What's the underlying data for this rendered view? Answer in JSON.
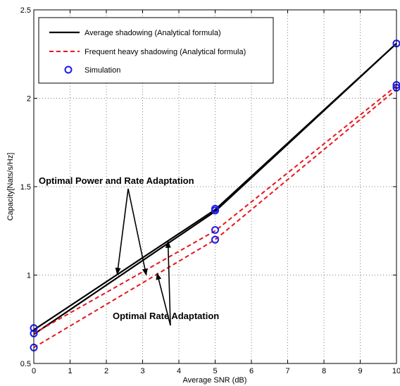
{
  "chart_data": {
    "type": "line",
    "xlabel": "Average SNR (dB)",
    "ylabel": "Capacity[Nats/s/Hz]",
    "xlim": [
      0,
      10
    ],
    "ylim": [
      0.5,
      2.5
    ],
    "xticks": [
      0,
      1,
      2,
      3,
      4,
      5,
      6,
      7,
      8,
      9,
      10
    ],
    "yticks": [
      0.5,
      1,
      1.5,
      2,
      2.5
    ],
    "xtick_labels": [
      "0",
      "1",
      "2",
      "3",
      "4",
      "5",
      "6",
      "7",
      "8",
      "9",
      "10"
    ],
    "ytick_labels": [
      "0.5",
      "1",
      "1.5",
      "2",
      "2.5"
    ],
    "grid": true,
    "legend_position": "top-left",
    "legend": [
      {
        "label": "Average shadowing (Analytical formula)",
        "style": "solid",
        "color": "#000000"
      },
      {
        "label": "Frequent heavy shadowing (Analytical formula)",
        "style": "dashed",
        "color": "#e8161b"
      },
      {
        "label": "Simulation",
        "style": "marker",
        "color": "#1a1aee"
      }
    ],
    "series": [
      {
        "group": "average",
        "style": "solid",
        "color": "#000000",
        "x": [
          0,
          5,
          10
        ],
        "y": [
          0.69,
          1.37,
          2.31
        ]
      },
      {
        "group": "average",
        "style": "solid",
        "color": "#000000",
        "x": [
          0,
          5,
          10
        ],
        "y": [
          0.665,
          1.36,
          2.31
        ]
      },
      {
        "group": "heavy",
        "style": "dashed",
        "color": "#e8161b",
        "x": [
          0,
          5,
          10
        ],
        "y": [
          0.67,
          1.25,
          2.07
        ]
      },
      {
        "group": "heavy",
        "style": "dashed",
        "color": "#e8161b",
        "x": [
          0,
          5,
          10
        ],
        "y": [
          0.59,
          1.2,
          2.05
        ]
      }
    ],
    "simulation": {
      "color": "#1a1aee",
      "points": [
        {
          "x": 0,
          "y": 0.7
        },
        {
          "x": 0,
          "y": 0.67
        },
        {
          "x": 0,
          "y": 0.59
        },
        {
          "x": 5,
          "y": 1.375
        },
        {
          "x": 5,
          "y": 1.365
        },
        {
          "x": 5,
          "y": 1.255
        },
        {
          "x": 5,
          "y": 1.2
        },
        {
          "x": 10,
          "y": 2.31
        },
        {
          "x": 10,
          "y": 2.075
        },
        {
          "x": 10,
          "y": 2.06
        }
      ]
    },
    "annotations": [
      {
        "text": "Optimal Power and Rate Adaptation",
        "arrows_to": [
          {
            "x": 2.3,
            "y": 1.005
          },
          {
            "x": 3.1,
            "y": 1.0
          }
        ]
      },
      {
        "text": "Optimal Rate Adaptation",
        "arrows_to": [
          {
            "x": 3.7,
            "y": 1.19
          },
          {
            "x": 3.4,
            "y": 1.01
          }
        ]
      }
    ]
  }
}
